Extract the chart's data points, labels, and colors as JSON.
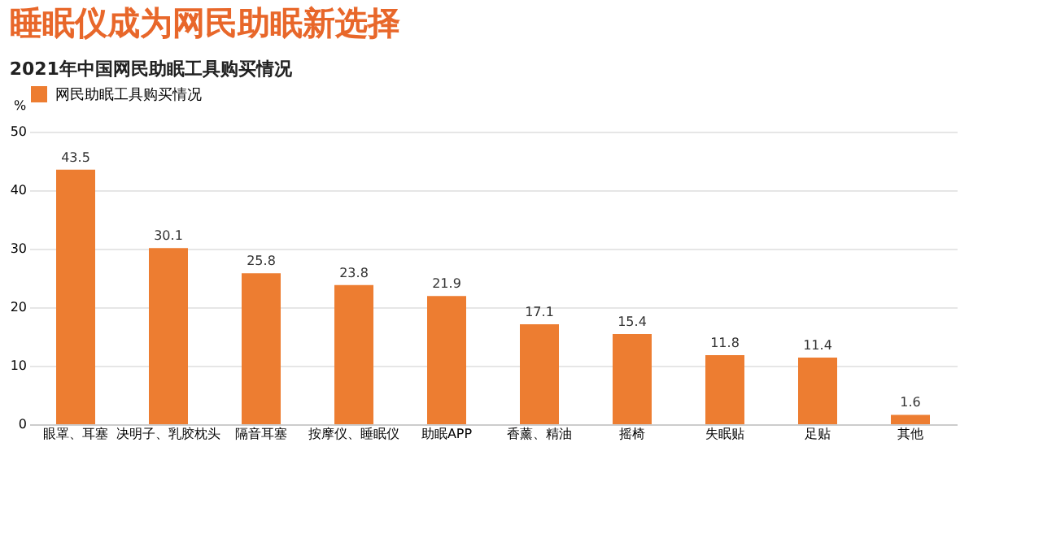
{
  "chart_data": {
    "type": "bar",
    "title": "睡眠仪成为网民助眠新选择",
    "subtitle": "2021年中国网民助眠工具购买情况",
    "ylabel": "%",
    "categories": [
      "眼罩、耳塞",
      "决明子、乳胶枕头",
      "隔音耳塞",
      "按摩仪、睡眠仪",
      "助眠APP",
      "香薰、精油",
      "摇椅",
      "失眠贴",
      "足贴",
      "其他"
    ],
    "series": [
      {
        "name": "网民助眠工具购买情况",
        "color": "#ed7d31",
        "values": [
          43.5,
          30.1,
          25.8,
          23.8,
          21.9,
          17.1,
          15.4,
          11.8,
          11.4,
          1.6
        ]
      }
    ],
    "ylim": [
      0,
      50
    ],
    "yticks": [
      0,
      10,
      20,
      30,
      40,
      50
    ],
    "grid": "y",
    "legend": "top",
    "data_labels": true
  }
}
